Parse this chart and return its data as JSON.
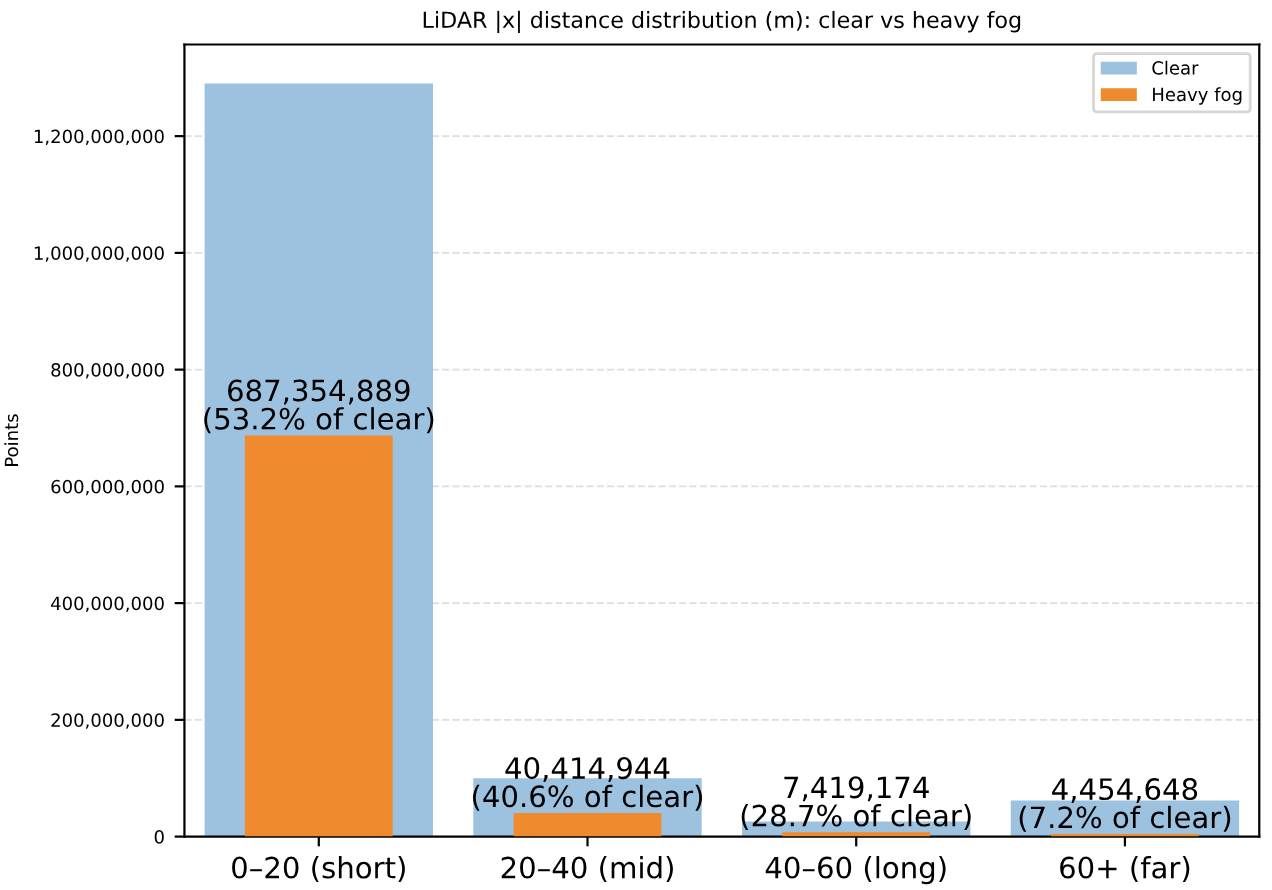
{
  "chart_data": {
    "type": "bar",
    "title": "LiDAR |x| distance distribution (m): clear vs heavy fog",
    "ylabel": "Points",
    "categories": [
      "0–20 (short)",
      "20–40 (mid)",
      "40–60 (long)",
      "60+ (far)"
    ],
    "series": [
      {
        "name": "Clear",
        "color": "#9cc2df",
        "values": [
          1290000000,
          100000000,
          26000000,
          62000000
        ]
      },
      {
        "name": "Heavy fog",
        "color": "#ef8a2f",
        "values": [
          687354889,
          40414944,
          7419174,
          4454648
        ],
        "value_labels": [
          "687,354,889\n(53.2% of clear)",
          "40,414,944\n(40.6% of clear)",
          "7,419,174\n(28.7% of clear)",
          "4,454,648\n(7.2% of clear)"
        ]
      }
    ],
    "ylim": [
      0,
      1357000000
    ],
    "yticks": [
      {
        "value": 0,
        "label": "0"
      },
      {
        "value": 200000000,
        "label": "200,000,000"
      },
      {
        "value": 400000000,
        "label": "400,000,000"
      },
      {
        "value": 600000000,
        "label": "600,000,000"
      },
      {
        "value": 800000000,
        "label": "800,000,000"
      },
      {
        "value": 1000000000,
        "label": "1,000,000,000"
      },
      {
        "value": 1200000000,
        "label": "1,200,000,000"
      }
    ],
    "grid": "y",
    "legend": "top right"
  }
}
